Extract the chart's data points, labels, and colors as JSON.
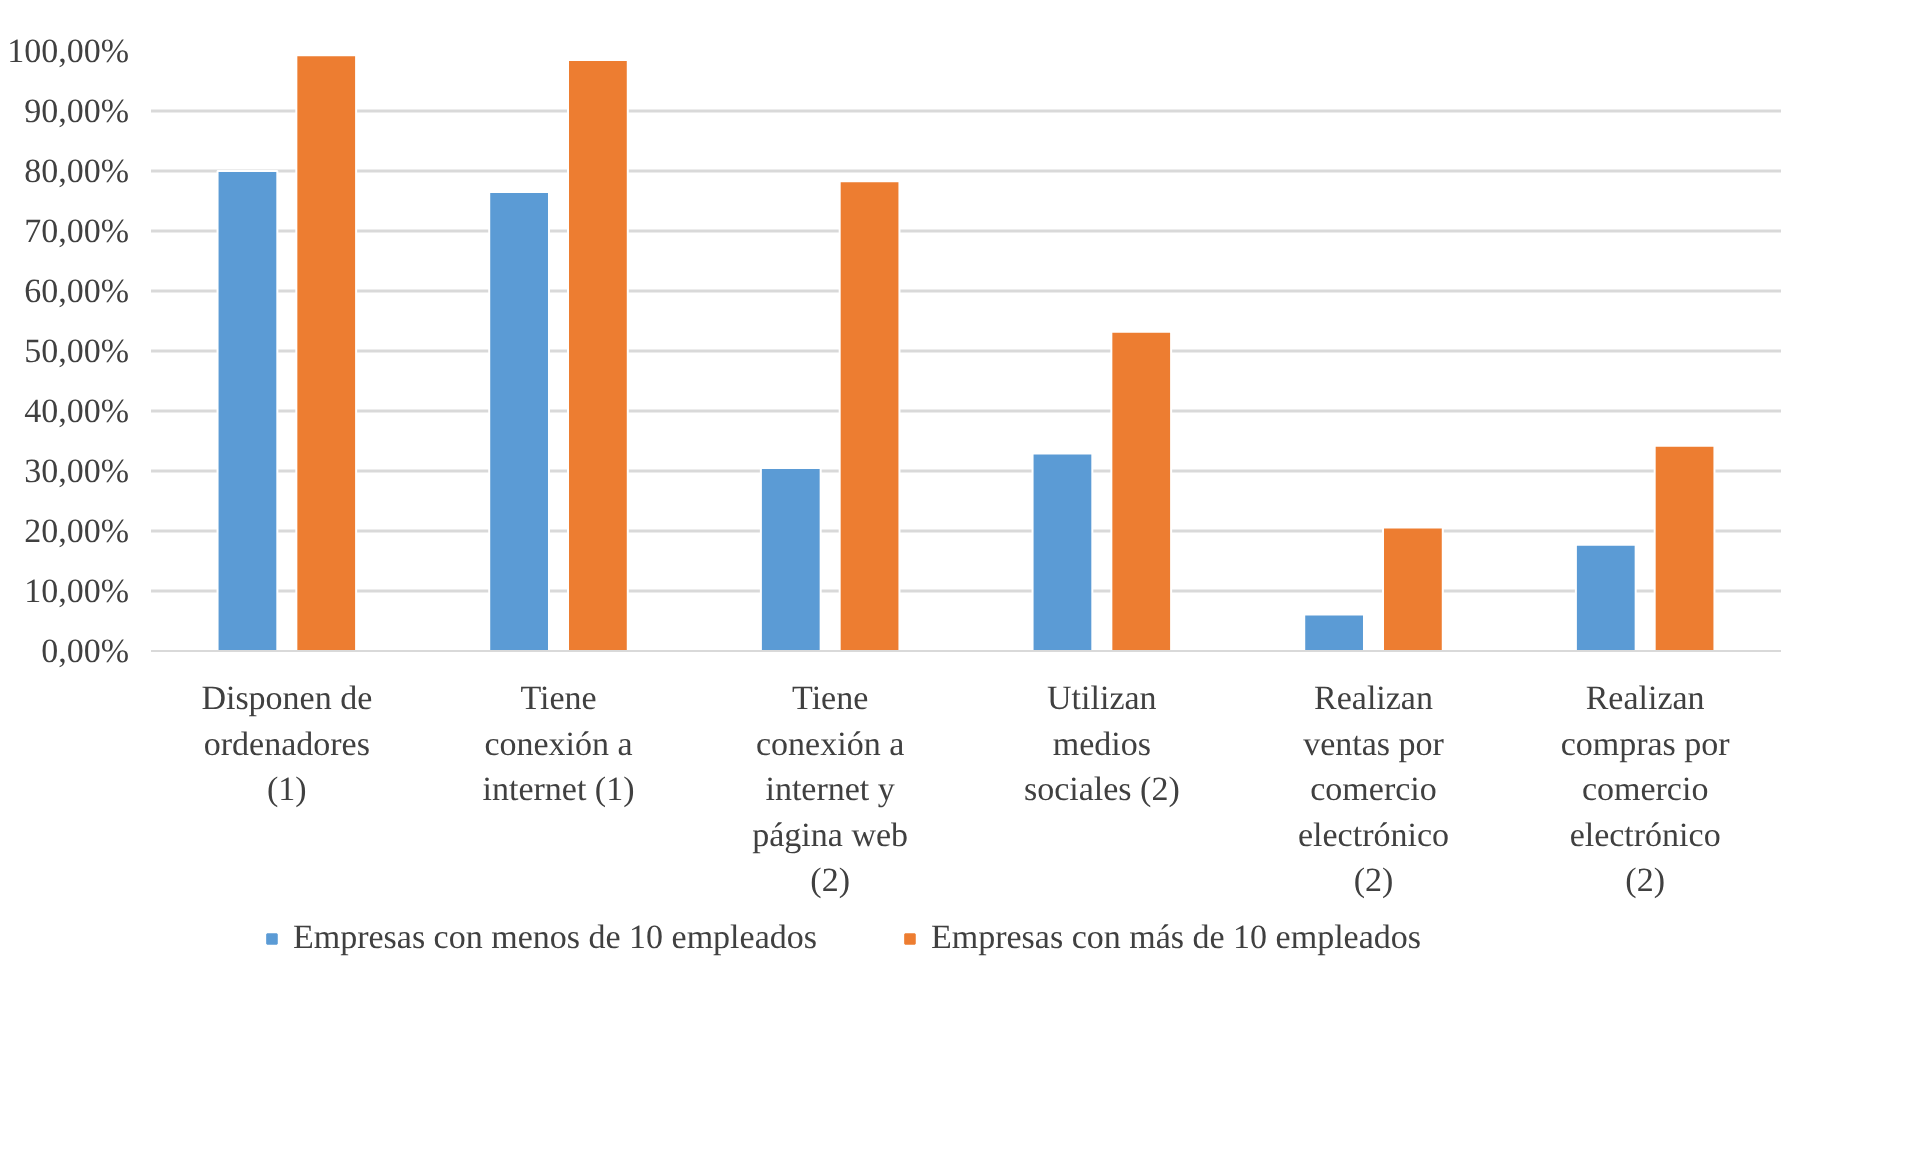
{
  "chart_data": {
    "type": "bar",
    "categories": [
      "Disponen de ordenadores (1)",
      "Tiene conexión a internet (1)",
      "Tiene conexión a internet y página web (2)",
      "Utilizan medios sociales (2)",
      "Realizan ventas por comercio electrónico (2)",
      "Realizan compras por comercio electrónico (2)"
    ],
    "series": [
      {
        "name": "Empresas con menos de 10 empleados",
        "color": "#5b9bd5",
        "values": [
          80.0,
          76.5,
          30.5,
          32.9,
          6.1,
          17.7
        ]
      },
      {
        "name": "Empresas con más de 10 empleados",
        "color": "#ed7d31",
        "values": [
          99.3,
          98.5,
          78.3,
          53.2,
          20.6,
          34.2
        ]
      }
    ],
    "ylim": [
      0,
      100
    ],
    "yticks": [
      {
        "value": 0,
        "label": "0,00%"
      },
      {
        "value": 10,
        "label": "10,00%"
      },
      {
        "value": 20,
        "label": "20,00%"
      },
      {
        "value": 30,
        "label": "30,00%"
      },
      {
        "value": 40,
        "label": "40,00%"
      },
      {
        "value": 50,
        "label": "50,00%"
      },
      {
        "value": 60,
        "label": "60,00%"
      },
      {
        "value": 70,
        "label": "70,00%"
      },
      {
        "value": 80,
        "label": "80,00%"
      },
      {
        "value": 90,
        "label": "90,00%"
      },
      {
        "value": 100,
        "label": "100,00%"
      }
    ],
    "grid": "y",
    "legend": "bottom"
  }
}
